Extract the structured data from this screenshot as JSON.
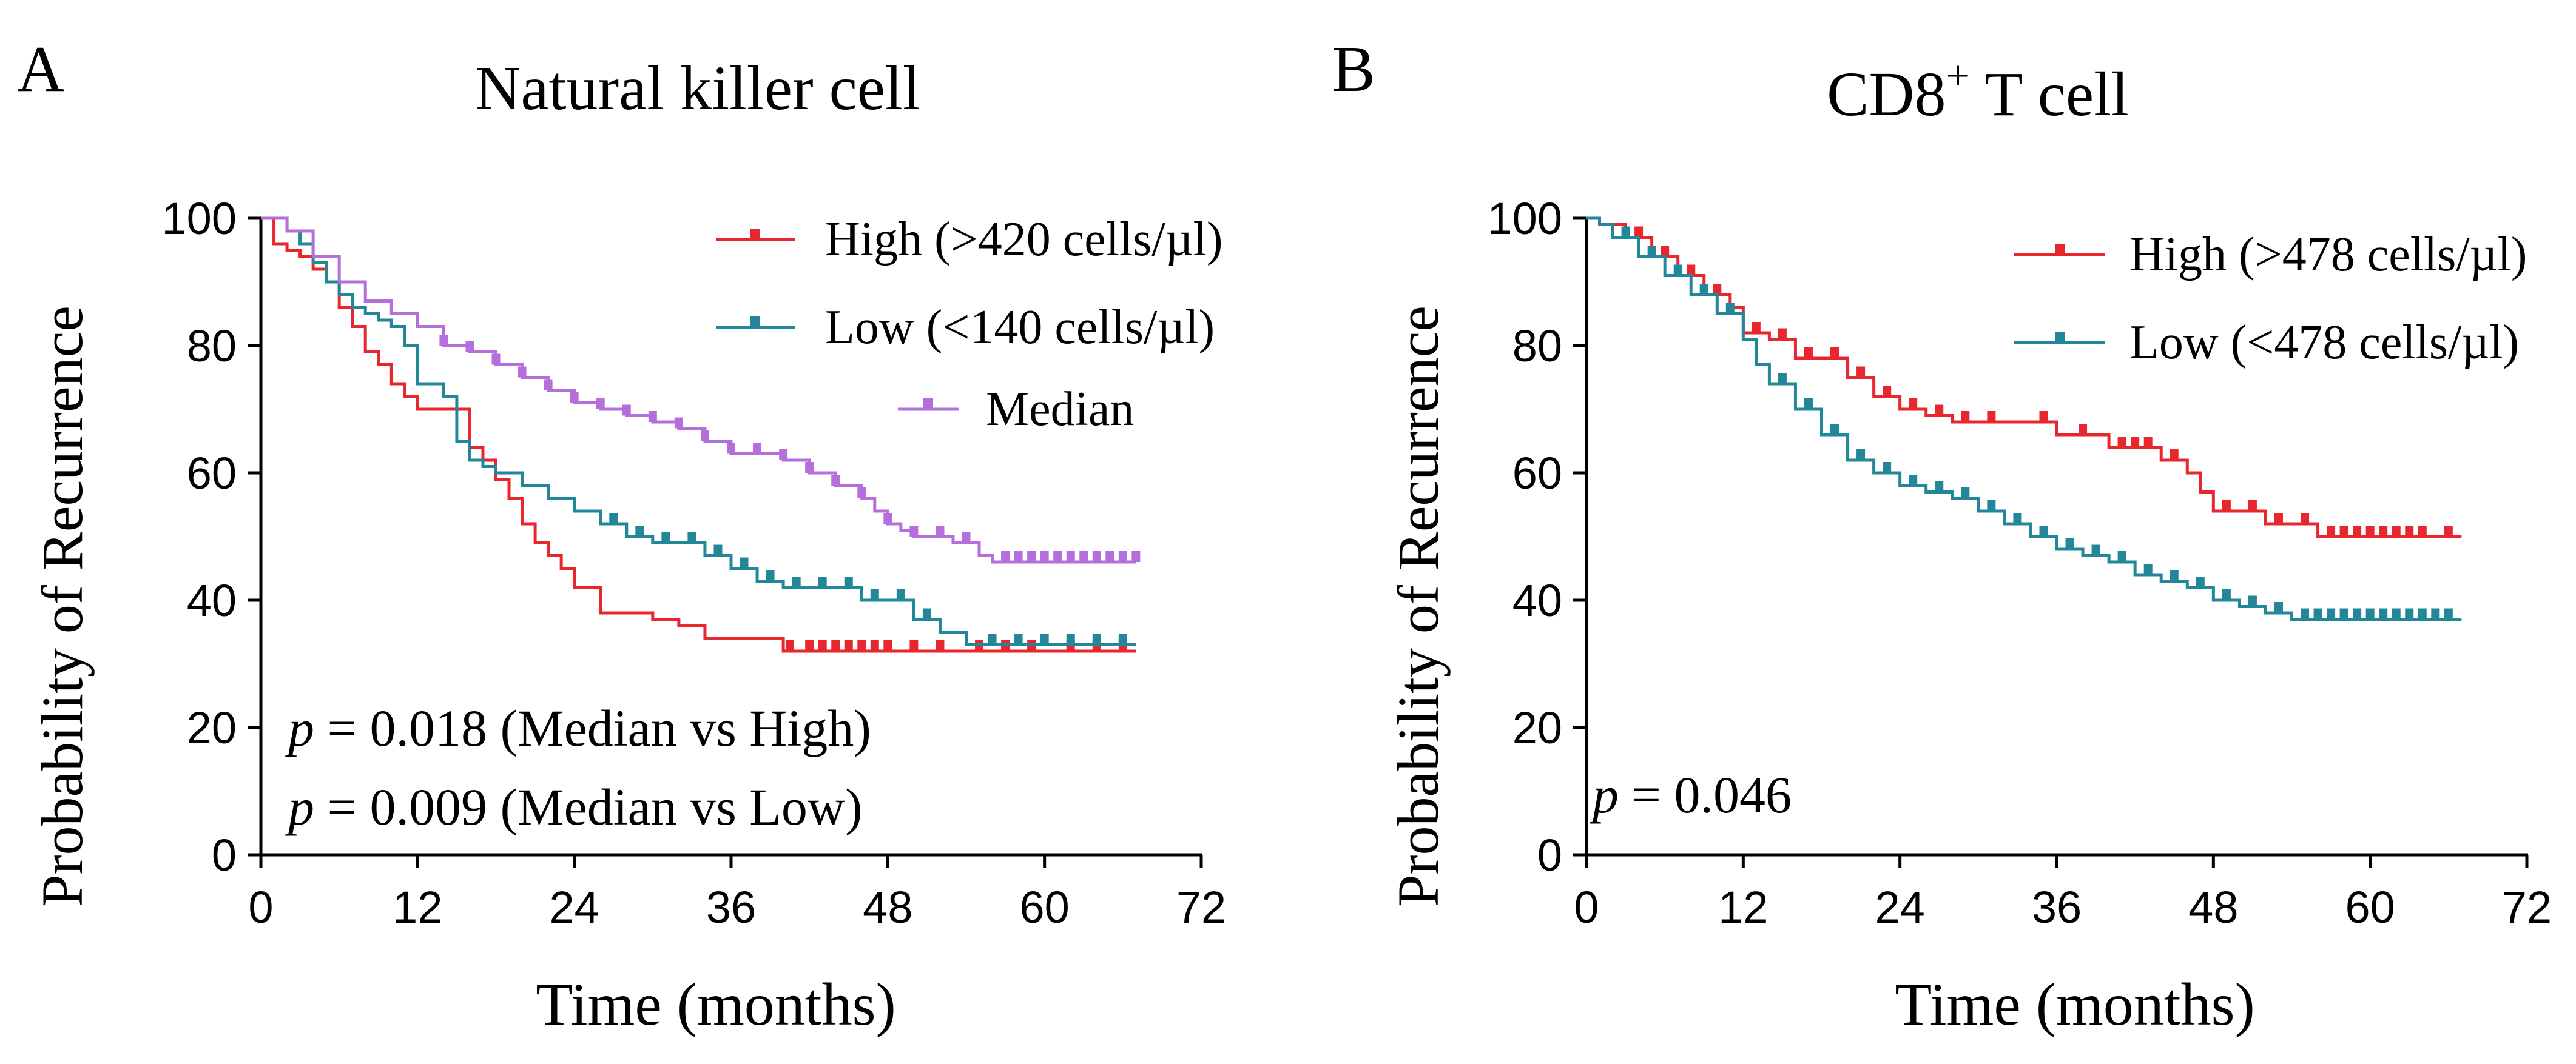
{
  "panels": [
    {
      "letter": "A",
      "title": "Natural killer cell",
      "title_parts": [],
      "ylabel": "Probability of Recurrence",
      "xlabel": "Time (months)",
      "p_lines": [
        {
          "p": "p",
          "rest": " = 0.018 (Median vs High)"
        },
        {
          "p": "p",
          "rest": " = 0.009 (Median vs Low)"
        }
      ]
    },
    {
      "letter": "B",
      "title": "",
      "title_parts": [
        "CD8",
        "+",
        " T cell"
      ],
      "ylabel": "Probability of Recurrence",
      "xlabel": "Time (months)",
      "p_lines": [
        {
          "p": "p",
          "rest": " = 0.046"
        }
      ]
    }
  ],
  "chart_data": [
    {
      "type": "line",
      "step": true,
      "title": "Natural killer cell",
      "xlabel": "Time (months)",
      "ylabel": "Probability of Recurrence",
      "xlim": [
        0,
        72
      ],
      "ylim": [
        0,
        100
      ],
      "xticks": [
        0,
        12,
        24,
        36,
        48,
        60,
        72
      ],
      "yticks": [
        0,
        20,
        40,
        60,
        80,
        100
      ],
      "legend_position": "top-right",
      "series": [
        {
          "name": "High (>420 cells/µl)",
          "color": "#e8262d",
          "x": [
            0,
            1,
            2,
            3,
            4,
            5,
            6,
            7,
            8,
            9,
            10,
            11,
            12,
            16,
            17,
            18,
            19,
            20,
            21,
            22,
            23,
            24,
            26,
            28,
            30,
            32,
            34,
            40,
            41,
            67
          ],
          "y": [
            100,
            96,
            95,
            94,
            92,
            90,
            86,
            83,
            79,
            77,
            74,
            72,
            70,
            64,
            62,
            59,
            56,
            52,
            49,
            47,
            45,
            42,
            38,
            38,
            37,
            36,
            34,
            32,
            32,
            32
          ],
          "censor_x": [
            40.5,
            42,
            43,
            44,
            45,
            46,
            47,
            48,
            50,
            52,
            55,
            57,
            59,
            62,
            64,
            66
          ]
        },
        {
          "name": "Low (<140 cells/µl)",
          "color": "#23879a",
          "x": [
            0,
            1,
            2,
            3,
            4,
            5,
            6,
            7,
            8,
            9,
            10,
            11,
            12,
            14,
            15,
            16,
            17,
            18,
            20,
            22,
            24,
            26,
            28,
            30,
            34,
            36,
            38,
            40,
            46,
            50,
            52,
            54,
            67
          ],
          "y": [
            100,
            100,
            98,
            96,
            93,
            90,
            88,
            86,
            85,
            84,
            83,
            80,
            74,
            72,
            65,
            62,
            61,
            60,
            58,
            56,
            54,
            52,
            50,
            49,
            47,
            45,
            43,
            42,
            40,
            37,
            35,
            33,
            33
          ],
          "censor_x": [
            27,
            29,
            31,
            33,
            35,
            37,
            39,
            41,
            43,
            45,
            47,
            49,
            51,
            56,
            58,
            60,
            62,
            64,
            66
          ]
        },
        {
          "name": "Median",
          "color": "#b46fdc",
          "x": [
            0,
            2,
            4,
            6,
            8,
            10,
            12,
            14,
            16,
            18,
            20,
            22,
            24,
            26,
            28,
            30,
            32,
            34,
            36,
            38,
            40,
            42,
            44,
            46,
            47,
            48,
            49,
            50,
            53,
            55,
            56,
            67
          ],
          "y": [
            100,
            98,
            94,
            90,
            87,
            85,
            83,
            80,
            79,
            77,
            75,
            73,
            71,
            70,
            69,
            68,
            67,
            65,
            63,
            63,
            62,
            60,
            58,
            56,
            54,
            52,
            51,
            50,
            49,
            47,
            46,
            46
          ],
          "censor_x": [
            14,
            16,
            18,
            20,
            22,
            24,
            26,
            28,
            30,
            32,
            34,
            36,
            38,
            40,
            42,
            44,
            46,
            48,
            50,
            52,
            54,
            57,
            58,
            59,
            60,
            61,
            62,
            63,
            64,
            65,
            66,
            67
          ]
        }
      ],
      "annotations": [
        "p = 0.018 (Median vs High)",
        "p = 0.009 (Median vs Low)"
      ]
    },
    {
      "type": "line",
      "step": true,
      "title": "CD8+ T cell",
      "xlabel": "Time (months)",
      "ylabel": "Probability of Recurrence",
      "xlim": [
        0,
        72
      ],
      "ylim": [
        0,
        100
      ],
      "xticks": [
        0,
        12,
        24,
        36,
        48,
        60,
        72
      ],
      "yticks": [
        0,
        20,
        40,
        60,
        80,
        100
      ],
      "legend_position": "top-right",
      "series": [
        {
          "name": "High (>478 cells/µl)",
          "color": "#e8262d",
          "x": [
            0,
            1,
            3,
            5,
            7,
            9,
            11,
            12,
            14,
            16,
            20,
            22,
            24,
            26,
            28,
            32,
            36,
            40,
            44,
            46,
            47,
            48,
            50,
            52,
            56,
            67
          ],
          "y": [
            100,
            99,
            97,
            94,
            91,
            88,
            86,
            82,
            81,
            78,
            75,
            72,
            70,
            69,
            68,
            68,
            66,
            64,
            62,
            60,
            57,
            54,
            54,
            52,
            50,
            50
          ],
          "censor_x": [
            4,
            6,
            8,
            10,
            13,
            15,
            17,
            19,
            21,
            23,
            25,
            27,
            29,
            31,
            35,
            38,
            41,
            42,
            43,
            45,
            49,
            51,
            53,
            55,
            57,
            58,
            59,
            60,
            61,
            62,
            63,
            64,
            66
          ]
        },
        {
          "name": "Low (<478 cells/µl)",
          "color": "#23879a",
          "x": [
            0,
            1,
            2,
            4,
            6,
            8,
            10,
            12,
            13,
            14,
            16,
            18,
            20,
            22,
            24,
            26,
            28,
            30,
            32,
            34,
            36,
            38,
            40,
            42,
            44,
            46,
            48,
            50,
            52,
            54,
            67
          ],
          "y": [
            100,
            99,
            97,
            94,
            91,
            88,
            85,
            81,
            77,
            74,
            70,
            66,
            62,
            60,
            58,
            57,
            56,
            54,
            52,
            50,
            48,
            47,
            46,
            44,
            43,
            42,
            40,
            39,
            38,
            37,
            37
          ],
          "censor_x": [
            3,
            5,
            7,
            9,
            11,
            15,
            17,
            19,
            21,
            23,
            25,
            27,
            29,
            31,
            33,
            35,
            37,
            39,
            41,
            43,
            45,
            47,
            49,
            51,
            53,
            55,
            56,
            57,
            58,
            59,
            60,
            61,
            62,
            63,
            64,
            65,
            66
          ]
        }
      ],
      "annotations": [
        "p = 0.046"
      ]
    }
  ]
}
